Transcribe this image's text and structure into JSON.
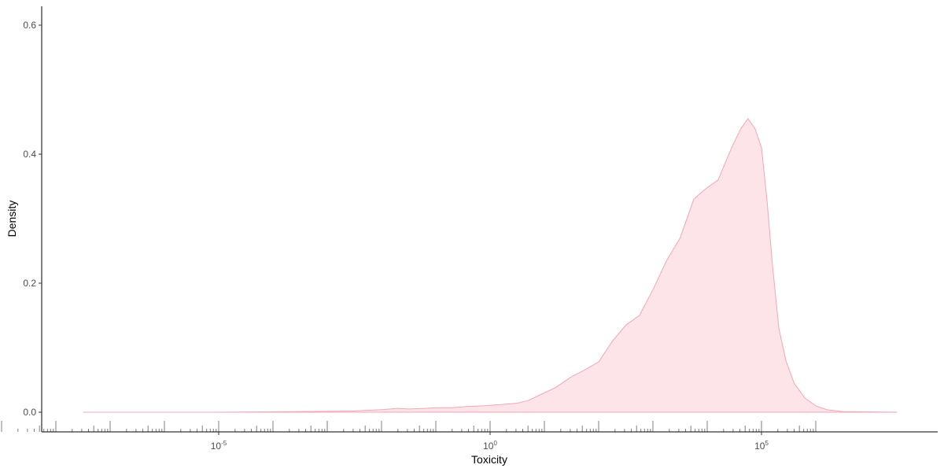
{
  "chart_data": {
    "type": "area",
    "xlabel": "Toxicity",
    "ylabel": "Density",
    "x_scale": "log10",
    "xlim_log10": [
      -10.1,
      6.2
    ],
    "ylim": [
      -0.03,
      0.63
    ],
    "grid": false,
    "legend": "none",
    "y_ticks": [
      {
        "value": 0.0,
        "label": "0.0"
      },
      {
        "value": 0.2,
        "label": "0.2"
      },
      {
        "value": 0.4,
        "label": "0.4"
      },
      {
        "value": 0.6,
        "label": "0.6"
      }
    ],
    "x_ticks": [
      {
        "log10": -5,
        "base": "10",
        "exp": "-5"
      },
      {
        "log10": 0,
        "base": "10",
        "exp": "0"
      },
      {
        "log10": 5,
        "base": "10",
        "exp": "5"
      }
    ],
    "rug_range_log10": [
      -9.9,
      6.1
    ],
    "series": [
      {
        "fill": "#fde4e9",
        "stroke": "#f4a6b6",
        "points_log10_density": [
          [
            -7.5,
            0.0
          ],
          [
            -5.0,
            0.0
          ],
          [
            -3.5,
            0.001
          ],
          [
            -2.5,
            0.002
          ],
          [
            -2.0,
            0.004
          ],
          [
            -1.7,
            0.006
          ],
          [
            -1.5,
            0.005
          ],
          [
            -1.2,
            0.006
          ],
          [
            -1.0,
            0.007
          ],
          [
            -0.7,
            0.007
          ],
          [
            -0.4,
            0.009
          ],
          [
            -0.1,
            0.01
          ],
          [
            0.2,
            0.012
          ],
          [
            0.5,
            0.014
          ],
          [
            0.7,
            0.018
          ],
          [
            0.95,
            0.028
          ],
          [
            1.2,
            0.038
          ],
          [
            1.5,
            0.055
          ],
          [
            1.75,
            0.066
          ],
          [
            2.0,
            0.078
          ],
          [
            2.25,
            0.11
          ],
          [
            2.5,
            0.135
          ],
          [
            2.75,
            0.15
          ],
          [
            3.0,
            0.19
          ],
          [
            3.25,
            0.235
          ],
          [
            3.5,
            0.27
          ],
          [
            3.75,
            0.33
          ],
          [
            3.95,
            0.345
          ],
          [
            4.2,
            0.36
          ],
          [
            4.45,
            0.41
          ],
          [
            4.62,
            0.44
          ],
          [
            4.75,
            0.455
          ],
          [
            4.88,
            0.44
          ],
          [
            5.0,
            0.41
          ],
          [
            5.1,
            0.33
          ],
          [
            5.2,
            0.23
          ],
          [
            5.32,
            0.13
          ],
          [
            5.45,
            0.08
          ],
          [
            5.6,
            0.045
          ],
          [
            5.8,
            0.022
          ],
          [
            6.0,
            0.01
          ],
          [
            6.2,
            0.004
          ],
          [
            6.5,
            0.001
          ],
          [
            7.5,
            0.0
          ]
        ]
      }
    ]
  }
}
